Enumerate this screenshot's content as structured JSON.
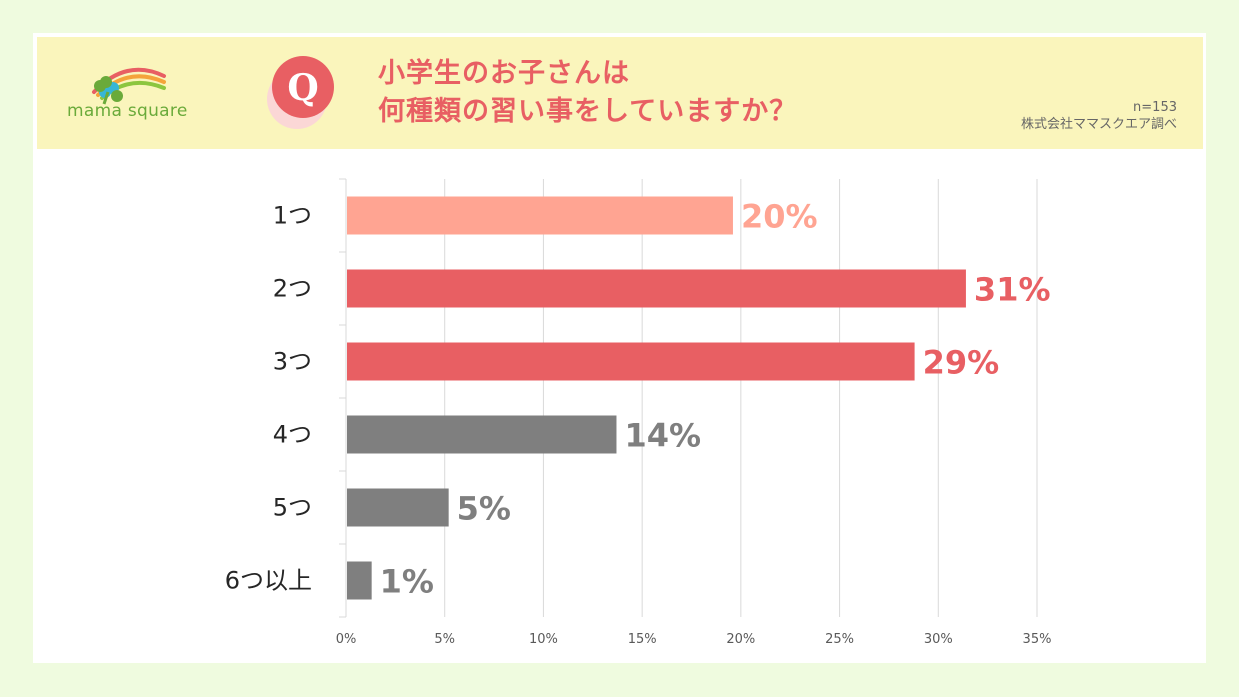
{
  "header": {
    "logo_text": "mama square",
    "q_letter": "Q",
    "question_line1": "小学生のお子さんは",
    "question_line2": "何種類の習い事をしていますか？",
    "sample_size": "n=153",
    "source": "株式会社ママスクエア調べ"
  },
  "colors": {
    "background": "#effbdf",
    "header_bg": "#faf5bc",
    "accent_red": "#e85f63",
    "light_salmon": "#ffa492",
    "gray": "#7f7f7f"
  },
  "chart_data": {
    "type": "bar",
    "orientation": "horizontal",
    "categories": [
      "1つ",
      "2つ",
      "3つ",
      "4つ",
      "5つ",
      "6つ以上"
    ],
    "values": [
      19.6,
      31.4,
      28.8,
      13.7,
      5.2,
      1.3
    ],
    "value_labels": [
      "20%",
      "31%",
      "29%",
      "14%",
      "5%",
      "1%"
    ],
    "bar_colors": [
      "#ffa492",
      "#e85f63",
      "#e85f63",
      "#7f7f7f",
      "#7f7f7f",
      "#7f7f7f"
    ],
    "label_colors": [
      "#ffa492",
      "#e85f63",
      "#e85f63",
      "#7f7f7f",
      "#7f7f7f",
      "#7f7f7f"
    ],
    "xlim": [
      0,
      35
    ],
    "xticks": [
      0,
      5,
      10,
      15,
      20,
      25,
      30,
      35
    ],
    "xtick_labels": [
      "0%",
      "5%",
      "10%",
      "15%",
      "20%",
      "25%",
      "30%",
      "35%"
    ],
    "grid": true,
    "title": "",
    "xlabel": "",
    "ylabel": ""
  }
}
